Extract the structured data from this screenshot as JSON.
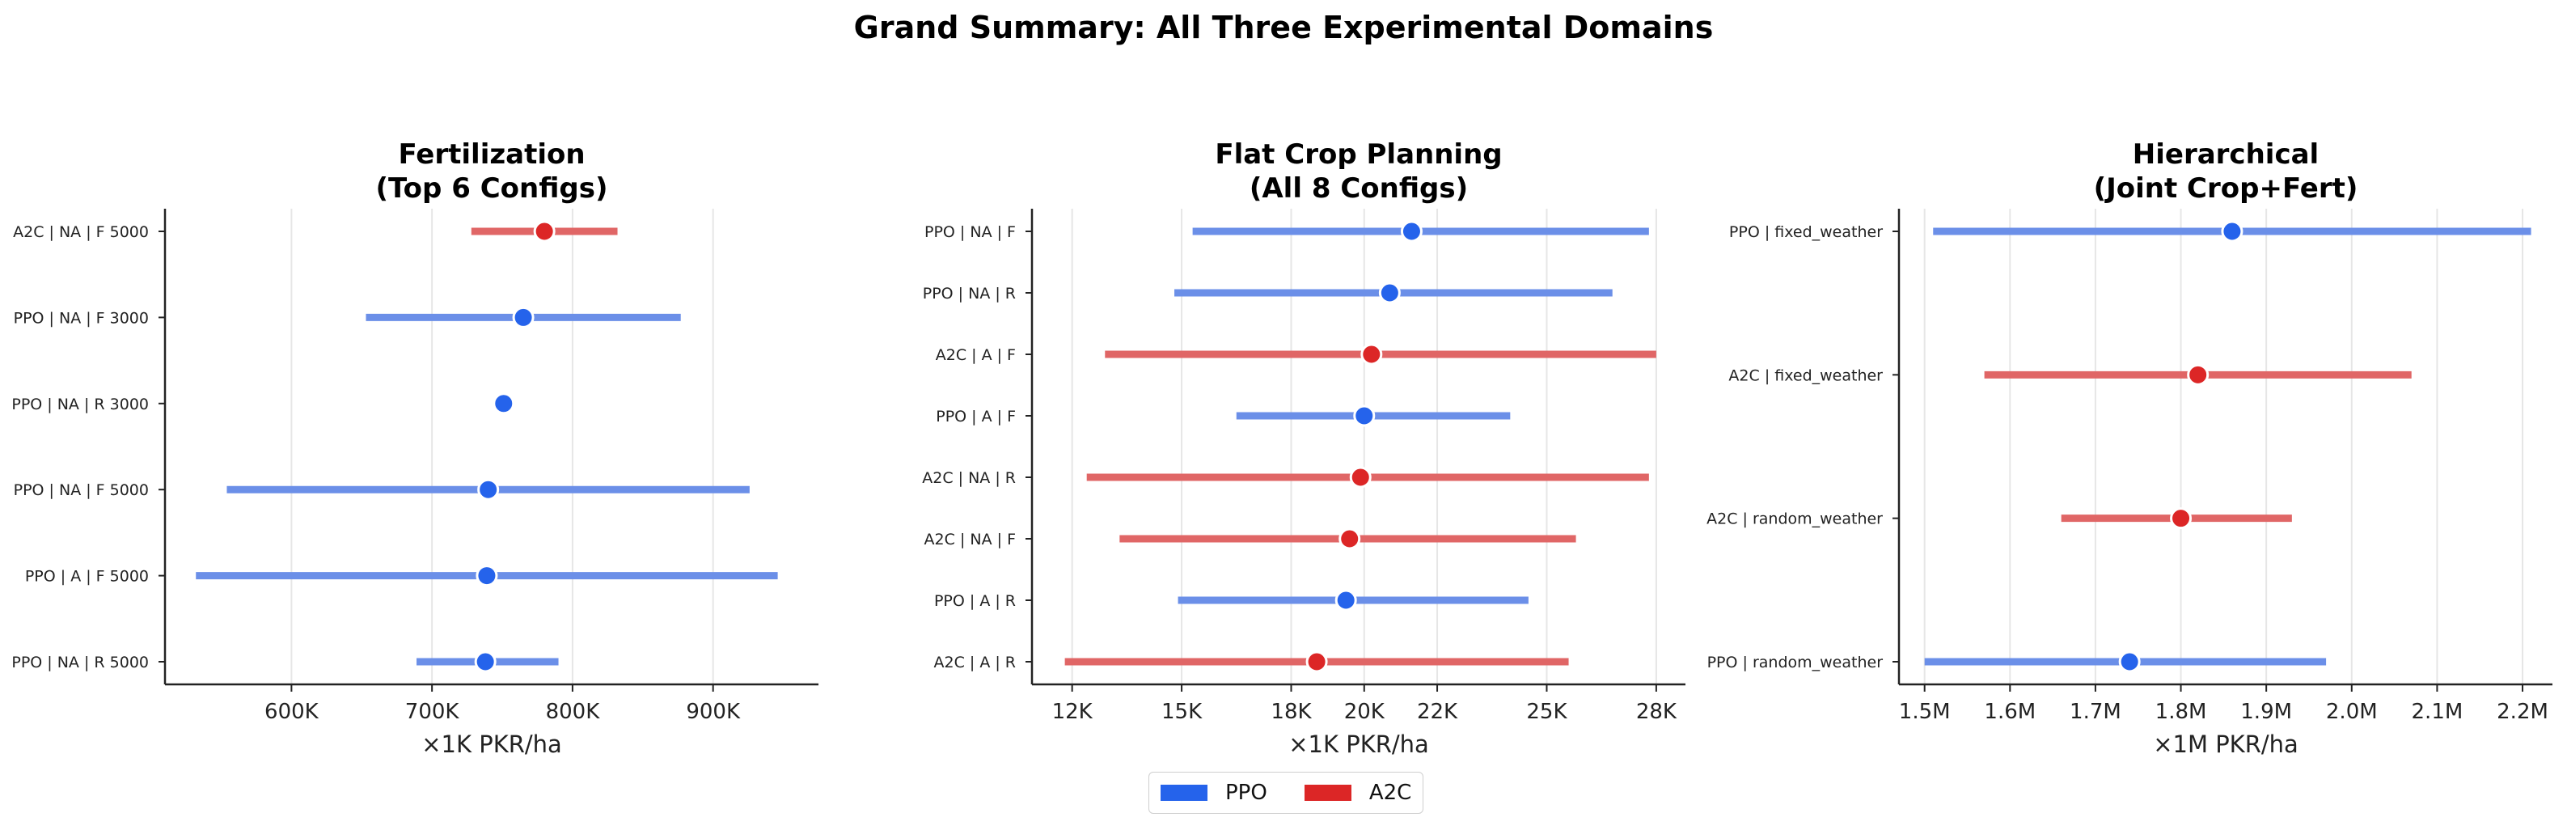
{
  "suptitle": "Grand Summary: All Three Experimental Domains",
  "colors": {
    "PPO": "#2563eb",
    "A2C": "#dc2626"
  },
  "legend": [
    {
      "name": "PPO",
      "color": "#2563eb"
    },
    {
      "name": "A2C",
      "color": "#dc2626"
    }
  ],
  "chart_data": [
    {
      "type": "scatter",
      "title": "Fertilization\n(Top 6 Configs)",
      "xlabel": "×1K PKR/ha",
      "xlim": [
        510,
        975
      ],
      "xticks": [
        600,
        700,
        800,
        900
      ],
      "xtick_labels": [
        "600K",
        "700K",
        "800K",
        "900K"
      ],
      "grid": "vertical",
      "points": [
        {
          "label": "A2C | NA | F 5000",
          "algo": "A2C",
          "mean": 780,
          "low": 728,
          "high": 832
        },
        {
          "label": "PPO | NA | F 3000",
          "algo": "PPO",
          "mean": 765,
          "low": 653,
          "high": 877
        },
        {
          "label": "PPO | NA | R 3000",
          "algo": "PPO",
          "mean": 751,
          "low": 751,
          "high": 751
        },
        {
          "label": "PPO | NA | F 5000",
          "algo": "PPO",
          "mean": 740,
          "low": 554,
          "high": 926
        },
        {
          "label": "PPO | A | F 5000",
          "algo": "PPO",
          "mean": 739,
          "low": 532,
          "high": 946
        },
        {
          "label": "PPO | NA | R 5000",
          "algo": "PPO",
          "mean": 738,
          "low": 689,
          "high": 790
        }
      ]
    },
    {
      "type": "scatter",
      "title": "Flat Crop Planning\n(All 8 Configs)",
      "xlabel": "×1K PKR/ha",
      "xlim": [
        10900,
        28800
      ],
      "xticks": [
        12000,
        15000,
        18000,
        20000,
        22000,
        25000,
        28000
      ],
      "xtick_labels": [
        "12K",
        "15K",
        "18K",
        "20K",
        "22K",
        "25K",
        "28K"
      ],
      "grid": "vertical",
      "points": [
        {
          "label": "PPO | NA | F",
          "algo": "PPO",
          "mean": 21300,
          "low": 15300,
          "high": 27800
        },
        {
          "label": "PPO | NA | R",
          "algo": "PPO",
          "mean": 20700,
          "low": 14800,
          "high": 26800
        },
        {
          "label": "A2C | A | F",
          "algo": "A2C",
          "mean": 20200,
          "low": 12900,
          "high": 28000
        },
        {
          "label": "PPO | A | F",
          "algo": "PPO",
          "mean": 20000,
          "low": 16500,
          "high": 24000
        },
        {
          "label": "A2C | NA | R",
          "algo": "A2C",
          "mean": 19900,
          "low": 12400,
          "high": 27800
        },
        {
          "label": "A2C | NA | F",
          "algo": "A2C",
          "mean": 19600,
          "low": 13300,
          "high": 25800
        },
        {
          "label": "PPO | A | R",
          "algo": "PPO",
          "mean": 19500,
          "low": 14900,
          "high": 24500
        },
        {
          "label": "A2C | A | R",
          "algo": "A2C",
          "mean": 18700,
          "low": 11800,
          "high": 25600
        }
      ]
    },
    {
      "type": "scatter",
      "title": "Hierarchical\n(Joint Crop+Fert)",
      "xlabel": "×1M PKR/ha",
      "xlim": [
        1.47,
        2.235
      ],
      "xticks": [
        1.5,
        1.6,
        1.7,
        1.8,
        1.9,
        2.0,
        2.1,
        2.2
      ],
      "xtick_labels": [
        "1.5M",
        "1.6M",
        "1.7M",
        "1.8M",
        "1.9M",
        "2.0M",
        "2.1M",
        "2.2M"
      ],
      "grid": "vertical",
      "points": [
        {
          "label": "PPO | fixed_weather",
          "algo": "PPO",
          "mean": 1.86,
          "low": 1.51,
          "high": 2.21
        },
        {
          "label": "A2C | fixed_weather",
          "algo": "A2C",
          "mean": 1.82,
          "low": 1.57,
          "high": 2.07
        },
        {
          "label": "A2C | random_weather",
          "algo": "A2C",
          "mean": 1.8,
          "low": 1.66,
          "high": 1.93
        },
        {
          "label": "PPO | random_weather",
          "algo": "PPO",
          "mean": 1.74,
          "low": 1.5,
          "high": 1.97
        }
      ]
    }
  ]
}
